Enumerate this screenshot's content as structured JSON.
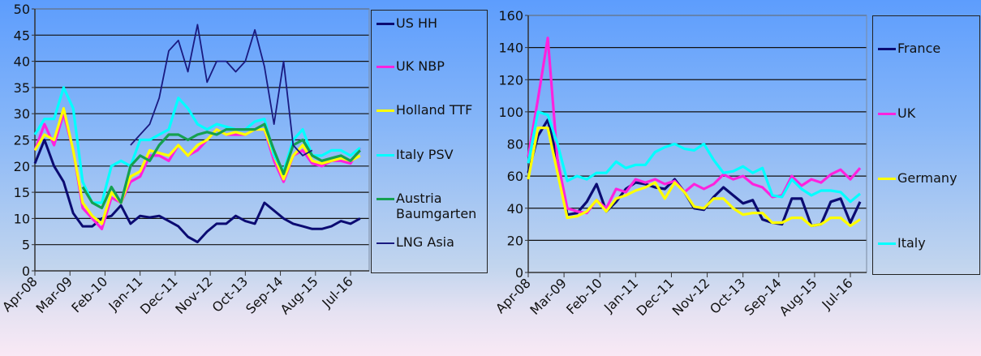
{
  "chart_data": [
    {
      "type": "line",
      "ylim": [
        0,
        50
      ],
      "yticks": [
        0,
        5,
        10,
        15,
        20,
        25,
        30,
        35,
        40,
        45,
        50
      ],
      "xtick_labels": [
        "Apr-08",
        "Mar-09",
        "Feb-10",
        "Jan-11",
        "Dec-11",
        "Nov-12",
        "Oct-13",
        "Sep-14",
        "Aug-15",
        "Jul-16"
      ],
      "grid": true,
      "legend_placement": "right",
      "x": [
        "Apr-08",
        "Jul-08",
        "Oct-08",
        "Jan-09",
        "Apr-09",
        "Jul-09",
        "Oct-09",
        "Jan-10",
        "Apr-10",
        "Jul-10",
        "Oct-10",
        "Jan-11",
        "Apr-11",
        "Jul-11",
        "Oct-11",
        "Jan-12",
        "Apr-12",
        "Jul-12",
        "Oct-12",
        "Jan-13",
        "Apr-13",
        "Jul-13",
        "Oct-13",
        "Jan-14",
        "Apr-14",
        "Jul-14",
        "Oct-14",
        "Jan-15",
        "Apr-15",
        "Jul-15",
        "Oct-15",
        "Jan-16",
        "Apr-16",
        "Jul-16",
        "Oct-16"
      ],
      "series": [
        {
          "name": "US HH",
          "color": "#0b0b72",
          "values": [
            20.5,
            25,
            20,
            17,
            11,
            8.5,
            8.5,
            10,
            10.5,
            12.5,
            9,
            10.5,
            10.2,
            10.5,
            9.5,
            8.5,
            6.5,
            5.5,
            7.5,
            9,
            9,
            10.5,
            9.5,
            9,
            13,
            11.5,
            10,
            9,
            8.5,
            8,
            8,
            8.5,
            9.5,
            9,
            10
          ]
        },
        {
          "name": "UK NBP",
          "color": "#ff22dd",
          "values": [
            23,
            28,
            24,
            30,
            23,
            12,
            10,
            8,
            14,
            13,
            17,
            18,
            22,
            22,
            21,
            24,
            22,
            23,
            25,
            27,
            26,
            26,
            26,
            27,
            27,
            21,
            17,
            22,
            23,
            20.5,
            20,
            21,
            21,
            20.5,
            23.5
          ]
        },
        {
          "name": "Holland TTF",
          "color": "#ffff00",
          "values": [
            23,
            26,
            25,
            31,
            23,
            13,
            10.5,
            9,
            15,
            13,
            18,
            19,
            23,
            22.5,
            22,
            24,
            22,
            24,
            25,
            27,
            26,
            26.5,
            26,
            27,
            27,
            22,
            17.5,
            22,
            24,
            21,
            20.5,
            21,
            21.5,
            21,
            22
          ]
        },
        {
          "name": "Italy PSV",
          "color": "#00ffff",
          "values": [
            26,
            29,
            29,
            35,
            31,
            17,
            13,
            13,
            20,
            21,
            20,
            25,
            25,
            26,
            27,
            33,
            31,
            28,
            27,
            28,
            27.5,
            27,
            27,
            28.5,
            29,
            22,
            19,
            25,
            27,
            22,
            22,
            23,
            23,
            22,
            23.5
          ]
        },
        {
          "name": "Austria Baumgarten",
          "color": "#15a050",
          "values": [
            null,
            null,
            null,
            null,
            null,
            16,
            13,
            12,
            16,
            13,
            20,
            22,
            21,
            24,
            26,
            26,
            25,
            26,
            26.5,
            26,
            27,
            27,
            27,
            27,
            28,
            23,
            18.5,
            24,
            25,
            22,
            21,
            21.5,
            22,
            21,
            23
          ]
        },
        {
          "name": "LNG Asia",
          "color": "#1a1a80",
          "values": [
            null,
            null,
            null,
            null,
            null,
            null,
            null,
            null,
            null,
            null,
            24,
            26,
            28,
            33,
            42,
            44,
            38,
            47,
            36,
            40,
            40,
            38,
            40,
            46,
            39,
            28,
            40,
            24,
            22,
            23,
            null,
            null,
            null,
            null,
            null
          ]
        }
      ]
    },
    {
      "type": "line",
      "ylim": [
        0,
        160
      ],
      "yticks": [
        0,
        20,
        40,
        60,
        80,
        100,
        120,
        140,
        160
      ],
      "xtick_labels": [
        "Apr-08",
        "Mar-09",
        "Feb-10",
        "Jan-11",
        "Dec-11",
        "Nov-12",
        "Oct-13",
        "Sep-14",
        "Aug-15",
        "Jul-16"
      ],
      "grid": true,
      "legend_placement": "right",
      "x": [
        "Apr-08",
        "Jul-08",
        "Oct-08",
        "Jan-09",
        "Apr-09",
        "Jul-09",
        "Oct-09",
        "Jan-10",
        "Apr-10",
        "Jul-10",
        "Oct-10",
        "Jan-11",
        "Apr-11",
        "Jul-11",
        "Oct-11",
        "Jan-12",
        "Apr-12",
        "Jul-12",
        "Oct-12",
        "Jan-13",
        "Apr-13",
        "Jul-13",
        "Oct-13",
        "Jan-14",
        "Apr-14",
        "Jul-14",
        "Oct-14",
        "Jan-15",
        "Apr-15",
        "Jul-15",
        "Oct-15",
        "Jan-16",
        "Apr-16",
        "Jul-16",
        "Oct-16"
      ],
      "series": [
        {
          "name": "France",
          "color": "#0b0b72",
          "values": [
            62,
            85,
            95,
            70,
            36,
            37,
            44,
            55,
            38,
            44,
            52,
            56,
            55,
            53,
            52,
            58,
            50,
            40,
            39,
            47,
            53,
            48,
            43,
            45,
            33,
            31,
            30,
            46,
            46,
            29,
            30,
            44,
            46,
            31,
            44
          ]
        },
        {
          "name": "UK",
          "color": "#ff22dd",
          "values": [
            72,
            108,
            146,
            70,
            40,
            38,
            37,
            45,
            40,
            52,
            50,
            58,
            56,
            58,
            55,
            57,
            50,
            55,
            52,
            55,
            61,
            58,
            60,
            55,
            53,
            47,
            48,
            60,
            54,
            58,
            56,
            61,
            64,
            58,
            65
          ]
        },
        {
          "name": "Germany",
          "color": "#ffff00",
          "values": [
            58,
            90,
            90,
            62,
            34,
            35,
            38,
            45,
            38,
            46,
            48,
            51,
            53,
            56,
            46,
            56,
            50,
            41,
            40,
            46,
            46,
            40,
            36,
            37,
            37,
            31,
            31,
            34,
            34,
            29,
            30,
            34,
            34,
            29,
            33
          ]
        },
        {
          "name": "Italy",
          "color": "#00ffff",
          "values": [
            68,
            100,
            98,
            80,
            57,
            60,
            58,
            62,
            62,
            69,
            65,
            67,
            67,
            75,
            78,
            80,
            77,
            76,
            80,
            70,
            62,
            63,
            66,
            62,
            65,
            48,
            47,
            58,
            52,
            48,
            51,
            51,
            50,
            44,
            49
          ]
        }
      ]
    }
  ]
}
